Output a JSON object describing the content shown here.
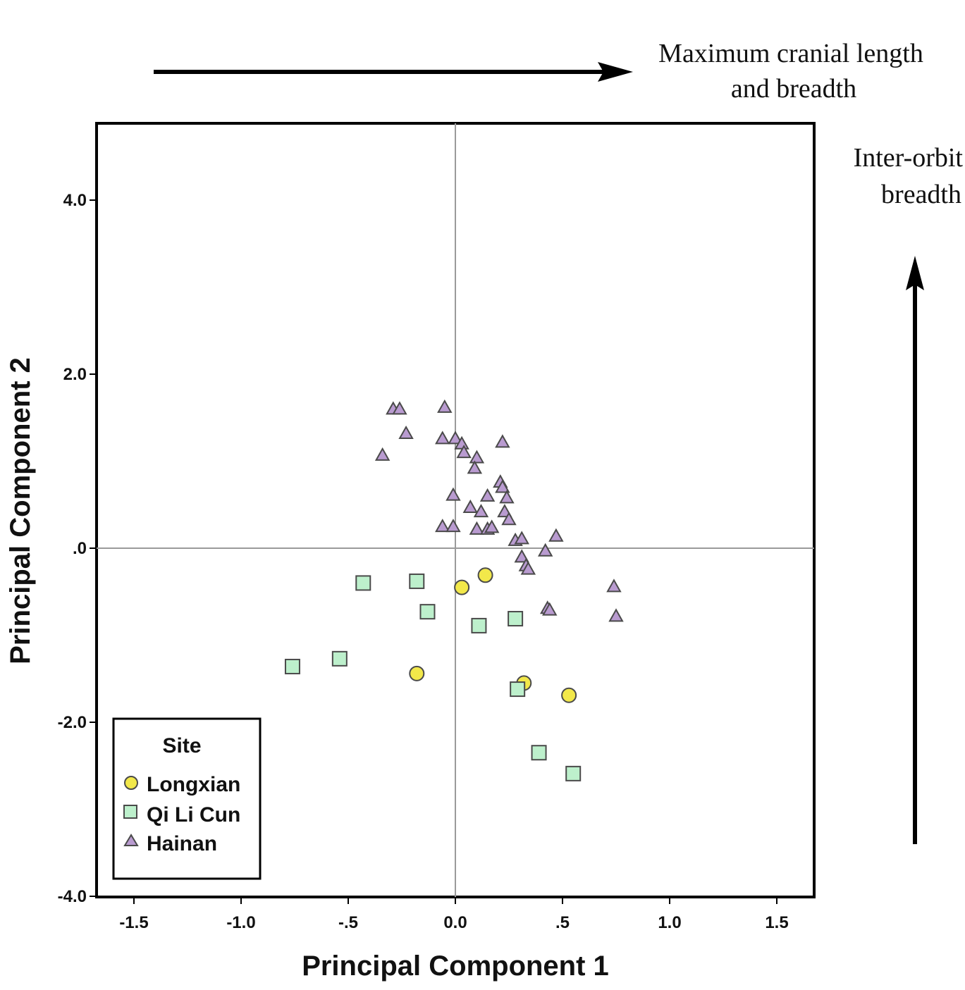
{
  "annotations": {
    "pc1_direction": [
      "Maximum cranial length",
      "and breadth"
    ],
    "pc2_direction": [
      "Inter-orbit",
      "breadth"
    ]
  },
  "chart_data": {
    "type": "scatter",
    "title": "",
    "xlabel": "Principal Component 1",
    "ylabel": "Principal Component 2",
    "xlim": [
      -1.68,
      1.68
    ],
    "ylim": [
      -4.0,
      4.9
    ],
    "xticks": [
      -1.5,
      -1.0,
      -0.5,
      0.0,
      0.5,
      1.0,
      1.5
    ],
    "xtick_labels": [
      "-1.5",
      "-1.0",
      "-.5",
      "0.0",
      ".5",
      "1.0",
      "1.5"
    ],
    "yticks": [
      4.0,
      2.0,
      0.0,
      -2.0,
      -4.0
    ],
    "ytick_labels": [
      "4.0",
      "2.0",
      ".0",
      "-2.0",
      "-4.0"
    ],
    "reference_lines": {
      "x": 0.0,
      "y": 0.0
    },
    "grid": false,
    "legend": {
      "title": "Site",
      "position": "bottom-left"
    },
    "series": [
      {
        "name": "Longxian",
        "marker": "circle",
        "color": "#f2e84a",
        "points": [
          [
            0.03,
            -0.45
          ],
          [
            0.14,
            -0.31
          ],
          [
            -0.18,
            -1.44
          ],
          [
            0.32,
            -1.55
          ],
          [
            0.53,
            -1.69
          ]
        ]
      },
      {
        "name": "Qi Li Cun",
        "marker": "square",
        "color": "#bdf0cc",
        "points": [
          [
            -0.43,
            -0.4
          ],
          [
            -0.18,
            -0.38
          ],
          [
            -0.13,
            -0.73
          ],
          [
            0.11,
            -0.89
          ],
          [
            0.28,
            -0.81
          ],
          [
            -0.76,
            -1.36
          ],
          [
            -0.54,
            -1.27
          ],
          [
            0.29,
            -1.62
          ],
          [
            0.39,
            -2.35
          ],
          [
            0.55,
            -2.59
          ]
        ]
      },
      {
        "name": "Hainan",
        "marker": "triangle",
        "color": "#b99bd0",
        "points": [
          [
            -0.29,
            1.6
          ],
          [
            -0.26,
            1.6
          ],
          [
            -0.05,
            1.62
          ],
          [
            -0.23,
            1.32
          ],
          [
            -0.34,
            1.07
          ],
          [
            -0.06,
            1.26
          ],
          [
            0.0,
            1.26
          ],
          [
            0.03,
            1.2
          ],
          [
            0.04,
            1.1
          ],
          [
            0.1,
            1.04
          ],
          [
            0.09,
            0.92
          ],
          [
            0.22,
            1.22
          ],
          [
            0.21,
            0.76
          ],
          [
            0.22,
            0.7
          ],
          [
            0.24,
            0.58
          ],
          [
            -0.01,
            0.61
          ],
          [
            0.15,
            0.6
          ],
          [
            0.07,
            0.47
          ],
          [
            0.12,
            0.42
          ],
          [
            0.23,
            0.42
          ],
          [
            0.25,
            0.33
          ],
          [
            -0.06,
            0.25
          ],
          [
            -0.01,
            0.25
          ],
          [
            0.1,
            0.22
          ],
          [
            0.15,
            0.22
          ],
          [
            0.17,
            0.24
          ],
          [
            0.28,
            0.09
          ],
          [
            0.31,
            0.11
          ],
          [
            0.47,
            0.14
          ],
          [
            0.42,
            -0.03
          ],
          [
            0.31,
            -0.1
          ],
          [
            0.33,
            -0.2
          ],
          [
            0.34,
            -0.24
          ],
          [
            0.43,
            -0.69
          ],
          [
            0.44,
            -0.71
          ],
          [
            0.74,
            -0.44
          ],
          [
            0.75,
            -0.78
          ]
        ]
      }
    ]
  }
}
